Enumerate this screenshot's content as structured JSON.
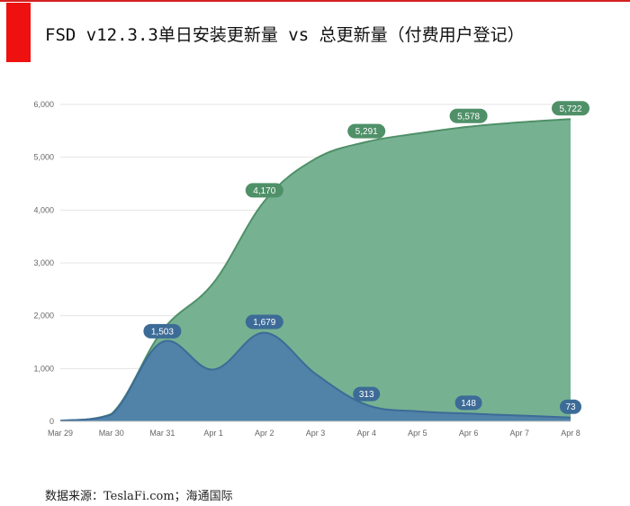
{
  "header": {
    "title": "FSD v12.3.3单日安装更新量 vs 总更新量（付费用户登记）",
    "accent_color": "#ef1010"
  },
  "footer": {
    "source": "数据来源：TeslaFi.com；海通国际"
  },
  "chart_data": {
    "type": "area",
    "categories": [
      "Mar 29",
      "Mar 30",
      "Mar 31",
      "Apr 1",
      "Apr 2",
      "Apr 3",
      "Apr 4",
      "Apr 5",
      "Apr 6",
      "Apr 7",
      "Apr 8"
    ],
    "ylim": [
      0,
      6000
    ],
    "yticks": [
      "0",
      "1,000",
      "2,000",
      "3,000",
      "4,000",
      "5,000",
      "6,000"
    ],
    "grid": true,
    "series": [
      {
        "key": "total",
        "color": "#6fae8c",
        "line_color": "#4f9068",
        "values": [
          10,
          140,
          1720,
          2620,
          4170,
          4970,
          5291,
          5450,
          5578,
          5660,
          5722
        ],
        "labels": [
          "",
          "",
          "",
          "",
          "4,170",
          "",
          "5,291",
          "",
          "5,578",
          "",
          "5,722"
        ]
      },
      {
        "key": "daily",
        "color": "#4f7fa9",
        "line_color": "#3d6b97",
        "values": [
          10,
          130,
          1503,
          980,
          1679,
          900,
          313,
          190,
          148,
          110,
          73
        ],
        "labels": [
          "",
          "",
          "1,503",
          "",
          "1,679",
          "",
          "313",
          "",
          "148",
          "",
          "73"
        ]
      }
    ]
  }
}
